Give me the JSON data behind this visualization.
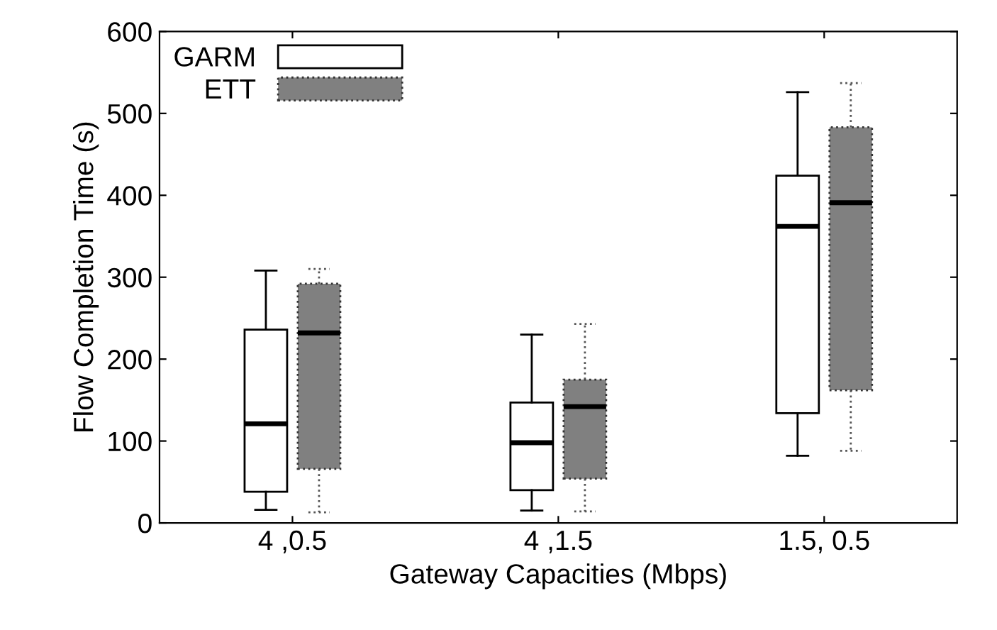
{
  "chart_data": {
    "type": "box",
    "xlabel": "Gateway Capacities (Mbps)",
    "ylabel": "Flow Completion Time (s)",
    "categories": [
      "4 ,0.5",
      "4 ,1.5",
      "1.5, 0.5"
    ],
    "ylim": [
      0,
      600
    ],
    "yticks": [
      0,
      100,
      200,
      300,
      400,
      500,
      600
    ],
    "grid": false,
    "legend": "top left",
    "series": [
      {
        "name": "GARM",
        "color": "#ffffff",
        "line_style": "solid",
        "boxes": [
          {
            "low": 16,
            "q1": 38,
            "median": 121,
            "q3": 236,
            "high": 308
          },
          {
            "low": 15,
            "q1": 40,
            "median": 98,
            "q3": 147,
            "high": 230
          },
          {
            "low": 82,
            "q1": 134,
            "median": 362,
            "q3": 424,
            "high": 526
          }
        ]
      },
      {
        "name": "ETT",
        "color": "#808080",
        "line_style": "dotted",
        "boxes": [
          {
            "low": 13,
            "q1": 66,
            "median": 232,
            "q3": 292,
            "high": 310
          },
          {
            "low": 14,
            "q1": 54,
            "median": 142,
            "q3": 175,
            "high": 243
          },
          {
            "low": 88,
            "q1": 162,
            "median": 391,
            "q3": 483,
            "high": 537
          }
        ]
      }
    ]
  }
}
